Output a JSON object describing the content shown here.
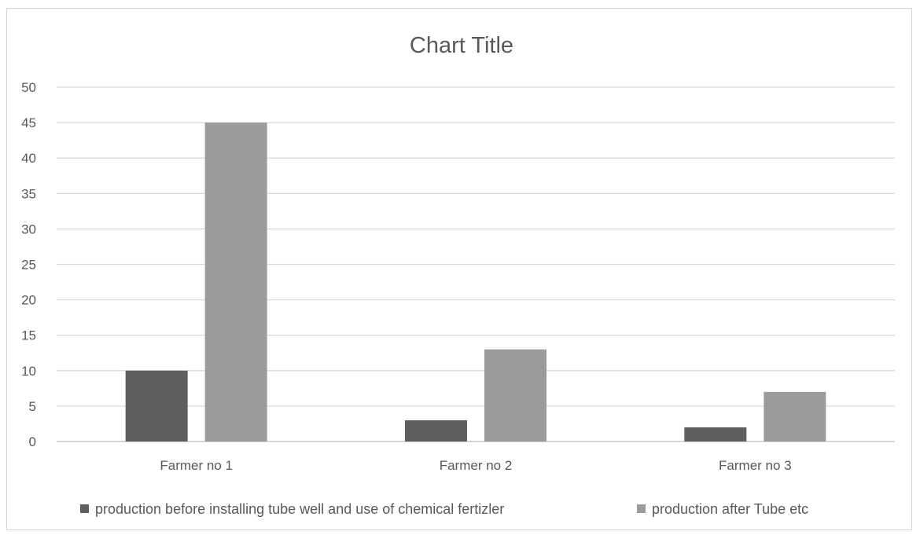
{
  "chart_data": {
    "type": "bar",
    "title": "Chart Title",
    "xlabel": "",
    "ylabel": "",
    "categories": [
      "Farmer no 1",
      "Farmer no 2",
      "Farmer no 3"
    ],
    "series": [
      {
        "name": "production before installing tube well and use of chemical fertizler",
        "values": [
          10,
          3,
          2
        ],
        "color": "#5f5f5f"
      },
      {
        "name": "production after Tube etc",
        "values": [
          45,
          13,
          7
        ],
        "color": "#9b9b9b"
      }
    ],
    "ylim": [
      0,
      50
    ],
    "yticks": [
      "0",
      "5",
      "10",
      "15",
      "20",
      "25",
      "30",
      "35",
      "40",
      "45",
      "50"
    ],
    "grid": true,
    "legend_position": "bottom"
  }
}
